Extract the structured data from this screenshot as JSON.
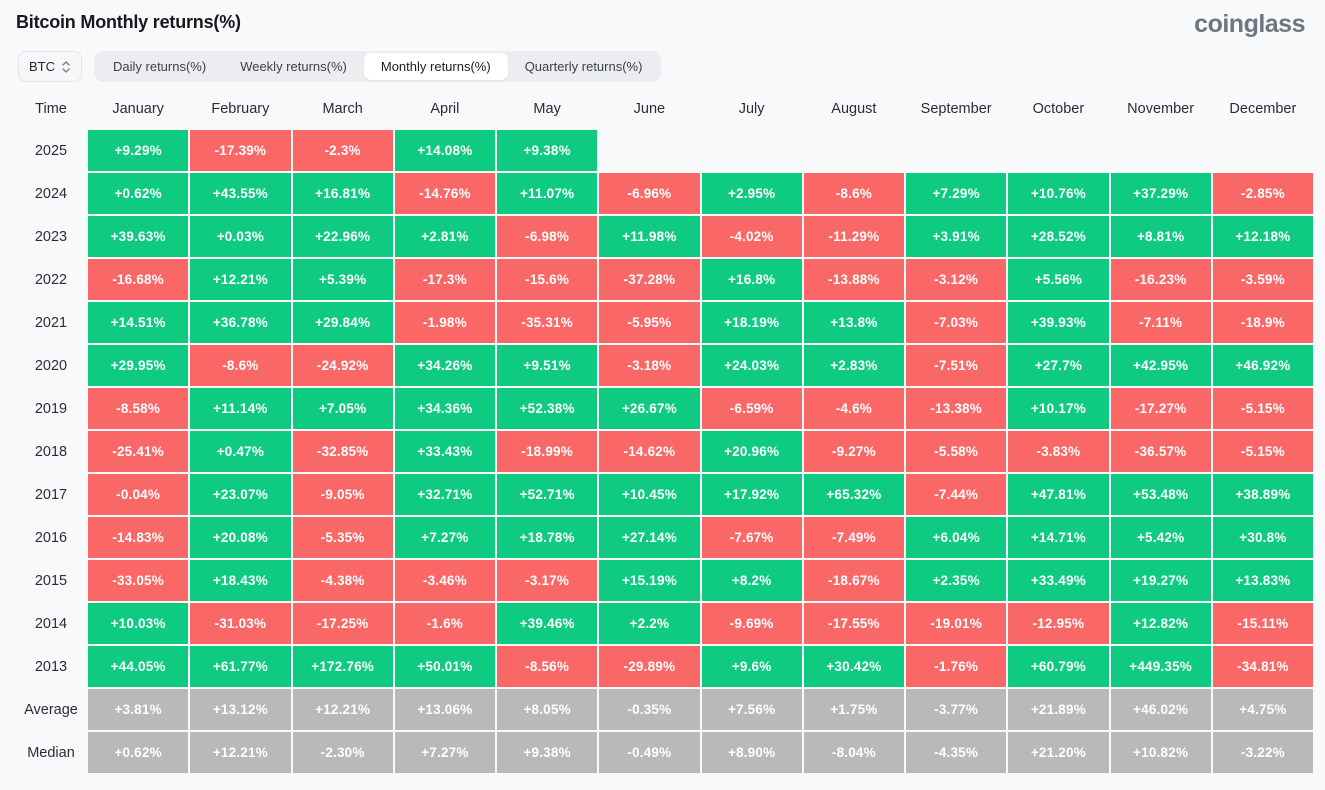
{
  "page": {
    "title": "Bitcoin Monthly returns(%)",
    "brand": "coinglass"
  },
  "controls": {
    "symbol_select": {
      "value": "BTC"
    },
    "tabs": [
      {
        "label": "Daily returns(%)",
        "active": false
      },
      {
        "label": "Weekly returns(%)",
        "active": false
      },
      {
        "label": "Monthly returns(%)",
        "active": true
      },
      {
        "label": "Quarterly returns(%)",
        "active": false
      }
    ]
  },
  "colors": {
    "positive": "#0ecb81",
    "negative": "#fa6767",
    "summary": "#b9b9b9",
    "page_bg": "#f8f9fa"
  },
  "chart_data": {
    "type": "heatmap",
    "title": "Bitcoin Monthly returns(%)",
    "columns": [
      "Time",
      "January",
      "February",
      "March",
      "April",
      "May",
      "June",
      "July",
      "August",
      "September",
      "October",
      "November",
      "December"
    ],
    "rows": [
      {
        "label": "2025",
        "summary": false,
        "values": [
          "+9.29%",
          "-17.39%",
          "-2.3%",
          "+14.08%",
          "+9.38%",
          "",
          "",
          "",
          "",
          "",
          "",
          ""
        ]
      },
      {
        "label": "2024",
        "summary": false,
        "values": [
          "+0.62%",
          "+43.55%",
          "+16.81%",
          "-14.76%",
          "+11.07%",
          "-6.96%",
          "+2.95%",
          "-8.6%",
          "+7.29%",
          "+10.76%",
          "+37.29%",
          "-2.85%"
        ]
      },
      {
        "label": "2023",
        "summary": false,
        "values": [
          "+39.63%",
          "+0.03%",
          "+22.96%",
          "+2.81%",
          "-6.98%",
          "+11.98%",
          "-4.02%",
          "-11.29%",
          "+3.91%",
          "+28.52%",
          "+8.81%",
          "+12.18%"
        ]
      },
      {
        "label": "2022",
        "summary": false,
        "values": [
          "-16.68%",
          "+12.21%",
          "+5.39%",
          "-17.3%",
          "-15.6%",
          "-37.28%",
          "+16.8%",
          "-13.88%",
          "-3.12%",
          "+5.56%",
          "-16.23%",
          "-3.59%"
        ]
      },
      {
        "label": "2021",
        "summary": false,
        "values": [
          "+14.51%",
          "+36.78%",
          "+29.84%",
          "-1.98%",
          "-35.31%",
          "-5.95%",
          "+18.19%",
          "+13.8%",
          "-7.03%",
          "+39.93%",
          "-7.11%",
          "-18.9%"
        ]
      },
      {
        "label": "2020",
        "summary": false,
        "values": [
          "+29.95%",
          "-8.6%",
          "-24.92%",
          "+34.26%",
          "+9.51%",
          "-3.18%",
          "+24.03%",
          "+2.83%",
          "-7.51%",
          "+27.7%",
          "+42.95%",
          "+46.92%"
        ]
      },
      {
        "label": "2019",
        "summary": false,
        "values": [
          "-8.58%",
          "+11.14%",
          "+7.05%",
          "+34.36%",
          "+52.38%",
          "+26.67%",
          "-6.59%",
          "-4.6%",
          "-13.38%",
          "+10.17%",
          "-17.27%",
          "-5.15%"
        ]
      },
      {
        "label": "2018",
        "summary": false,
        "values": [
          "-25.41%",
          "+0.47%",
          "-32.85%",
          "+33.43%",
          "-18.99%",
          "-14.62%",
          "+20.96%",
          "-9.27%",
          "-5.58%",
          "-3.83%",
          "-36.57%",
          "-5.15%"
        ]
      },
      {
        "label": "2017",
        "summary": false,
        "values": [
          "-0.04%",
          "+23.07%",
          "-9.05%",
          "+32.71%",
          "+52.71%",
          "+10.45%",
          "+17.92%",
          "+65.32%",
          "-7.44%",
          "+47.81%",
          "+53.48%",
          "+38.89%"
        ]
      },
      {
        "label": "2016",
        "summary": false,
        "values": [
          "-14.83%",
          "+20.08%",
          "-5.35%",
          "+7.27%",
          "+18.78%",
          "+27.14%",
          "-7.67%",
          "-7.49%",
          "+6.04%",
          "+14.71%",
          "+5.42%",
          "+30.8%"
        ]
      },
      {
        "label": "2015",
        "summary": false,
        "values": [
          "-33.05%",
          "+18.43%",
          "-4.38%",
          "-3.46%",
          "-3.17%",
          "+15.19%",
          "+8.2%",
          "-18.67%",
          "+2.35%",
          "+33.49%",
          "+19.27%",
          "+13.83%"
        ]
      },
      {
        "label": "2014",
        "summary": false,
        "values": [
          "+10.03%",
          "-31.03%",
          "-17.25%",
          "-1.6%",
          "+39.46%",
          "+2.2%",
          "-9.69%",
          "-17.55%",
          "-19.01%",
          "-12.95%",
          "+12.82%",
          "-15.11%"
        ]
      },
      {
        "label": "2013",
        "summary": false,
        "values": [
          "+44.05%",
          "+61.77%",
          "+172.76%",
          "+50.01%",
          "-8.56%",
          "-29.89%",
          "+9.6%",
          "+30.42%",
          "-1.76%",
          "+60.79%",
          "+449.35%",
          "-34.81%"
        ]
      },
      {
        "label": "Average",
        "summary": true,
        "values": [
          "+3.81%",
          "+13.12%",
          "+12.21%",
          "+13.06%",
          "+8.05%",
          "-0.35%",
          "+7.56%",
          "+1.75%",
          "-3.77%",
          "+21.89%",
          "+46.02%",
          "+4.75%"
        ]
      },
      {
        "label": "Median",
        "summary": true,
        "values": [
          "+0.62%",
          "+12.21%",
          "-2.30%",
          "+7.27%",
          "+9.38%",
          "-0.49%",
          "+8.90%",
          "-8.04%",
          "-4.35%",
          "+21.20%",
          "+10.82%",
          "-3.22%"
        ]
      }
    ]
  }
}
